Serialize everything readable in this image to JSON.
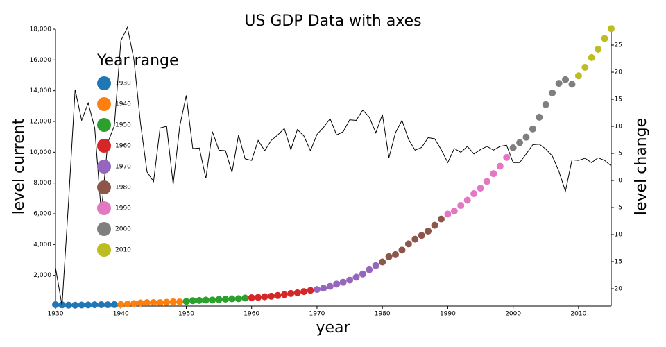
{
  "chart_data": {
    "type": "scatter",
    "title": "US GDP Data with axes",
    "x_label": "year",
    "y_label": "level current",
    "y2_label": "level change",
    "legend_title": "Year range",
    "xlim": [
      1930,
      2015
    ],
    "xticks": [
      1930,
      1940,
      1950,
      1960,
      1970,
      1980,
      1990,
      2000,
      2010
    ],
    "ylim": [
      0,
      18000
    ],
    "yticks": [
      {
        "value": 2000,
        "label": "2,000"
      },
      {
        "value": 4000,
        "label": "4,000"
      },
      {
        "value": 6000,
        "label": "6,000"
      },
      {
        "value": 8000,
        "label": "8,000"
      },
      {
        "value": 10000,
        "label": "10,000"
      },
      {
        "value": 12000,
        "label": "12,000"
      },
      {
        "value": 14000,
        "label": "14,000"
      },
      {
        "value": 16000,
        "label": "16,000"
      },
      {
        "value": 18000,
        "label": "18,000"
      }
    ],
    "y2lim": [
      -23.2,
      27.95
    ],
    "y2ticks": [
      -20,
      -15,
      -10,
      -5,
      0,
      5,
      10,
      15,
      20,
      25
    ],
    "series": [
      {
        "name": "1930",
        "color": "#1f77b4",
        "x": [
          1930,
          1931,
          1932,
          1933,
          1934,
          1935,
          1936,
          1937,
          1938,
          1939
        ],
        "values": [
          92.2,
          77.4,
          59.5,
          57.2,
          66.8,
          74.2,
          84.8,
          93.0,
          87.4,
          93.5
        ]
      },
      {
        "name": "1940",
        "color": "#ff7f0e",
        "x": [
          1940,
          1941,
          1942,
          1943,
          1944,
          1945,
          1946,
          1947,
          1948,
          1949
        ],
        "values": [
          102.9,
          129.4,
          166.0,
          203.1,
          224.6,
          228.2,
          227.8,
          249.9,
          274.8,
          272.8
        ]
      },
      {
        "name": "1950",
        "color": "#2ca02c",
        "x": [
          1950,
          1951,
          1952,
          1953,
          1954,
          1955,
          1956,
          1957,
          1958,
          1959
        ],
        "values": [
          300.2,
          347.3,
          367.7,
          389.7,
          391.1,
          426.2,
          450.1,
          474.9,
          482.0,
          522.5
        ]
      },
      {
        "name": "1960",
        "color": "#d62728",
        "x": [
          1960,
          1961,
          1962,
          1963,
          1964,
          1965,
          1966,
          1967,
          1968,
          1969
        ],
        "values": [
          543.3,
          563.3,
          605.1,
          638.6,
          685.8,
          743.7,
          815.0,
          861.7,
          942.5,
          1019.9
        ]
      },
      {
        "name": "1970",
        "color": "#9467bd",
        "x": [
          1970,
          1971,
          1972,
          1973,
          1974,
          1975,
          1976,
          1977,
          1978,
          1979
        ],
        "values": [
          1075.9,
          1167.8,
          1282.4,
          1428.5,
          1548.8,
          1688.9,
          1877.6,
          2086.0,
          2356.6,
          2632.1
        ]
      },
      {
        "name": "1980",
        "color": "#8c564b",
        "x": [
          1980,
          1981,
          1982,
          1983,
          1984,
          1985,
          1986,
          1987,
          1988,
          1989
        ],
        "values": [
          2862.5,
          3211.0,
          3345.0,
          3638.1,
          4040.7,
          4346.7,
          4590.2,
          4870.2,
          5252.6,
          5657.7
        ]
      },
      {
        "name": "1990",
        "color": "#e377c2",
        "x": [
          1990,
          1991,
          1992,
          1993,
          1994,
          1995,
          1996,
          1997,
          1998,
          1999
        ],
        "values": [
          5979.6,
          6174.0,
          6539.3,
          6878.7,
          7308.8,
          7664.1,
          8100.2,
          8608.5,
          9089.2,
          9660.6
        ]
      },
      {
        "name": "2000",
        "color": "#7f7f7f",
        "x": [
          2000,
          2001,
          2002,
          2003,
          2004,
          2005,
          2006,
          2007,
          2008,
          2009
        ],
        "values": [
          10284.8,
          10621.8,
          10977.5,
          11510.7,
          12274.9,
          13093.7,
          13855.9,
          14477.6,
          14718.6,
          14418.7
        ]
      },
      {
        "name": "2010",
        "color": "#bcbd22",
        "x": [
          2010,
          2011,
          2012,
          2013,
          2014,
          2015
        ],
        "values": [
          14964.4,
          15517.9,
          16155.3,
          16691.5,
          17393.1,
          18036.6
        ]
      },
      {
        "type": "line",
        "axis": "y2",
        "color": "#000000",
        "x": [
          1930,
          1931,
          1932,
          1933,
          1934,
          1935,
          1936,
          1937,
          1938,
          1939,
          1940,
          1941,
          1942,
          1943,
          1944,
          1945,
          1946,
          1947,
          1948,
          1949,
          1950,
          1951,
          1952,
          1953,
          1954,
          1955,
          1956,
          1957,
          1958,
          1959,
          1960,
          1961,
          1962,
          1963,
          1964,
          1965,
          1966,
          1967,
          1968,
          1969,
          1970,
          1971,
          1972,
          1973,
          1974,
          1975,
          1976,
          1977,
          1978,
          1979,
          1980,
          1981,
          1982,
          1983,
          1984,
          1985,
          1986,
          1987,
          1988,
          1989,
          1990,
          1991,
          1992,
          1993,
          1994,
          1995,
          1996,
          1997,
          1998,
          1999,
          2000,
          2001,
          2002,
          2003,
          2004,
          2005,
          2006,
          2007,
          2008,
          2009,
          2010,
          2011,
          2012,
          2013,
          2014,
          2015
        ],
        "values": [
          -16.1,
          -23.1,
          -3.9,
          16.8,
          11.1,
          14.3,
          9.7,
          -6.0,
          7.0,
          10.1,
          25.8,
          28.3,
          22.3,
          10.6,
          1.6,
          -0.2,
          9.7,
          10.0,
          -0.7,
          10.0,
          15.7,
          5.9,
          6.0,
          0.4,
          9.0,
          5.6,
          5.5,
          1.5,
          8.4,
          4.0,
          3.7,
          7.4,
          5.5,
          7.4,
          8.4,
          9.6,
          5.7,
          9.4,
          8.2,
          5.5,
          8.5,
          9.8,
          11.4,
          8.4,
          9.0,
          11.2,
          11.1,
          13.0,
          11.7,
          8.8,
          12.2,
          4.2,
          8.8,
          11.1,
          7.6,
          5.6,
          6.1,
          7.9,
          7.7,
          5.7,
          3.3,
          5.9,
          5.2,
          6.3,
          4.9,
          5.7,
          6.3,
          5.6,
          6.3,
          6.5,
          3.3,
          3.3,
          4.9,
          6.6,
          6.7,
          5.8,
          4.5,
          1.7,
          -2.0,
          3.8,
          3.7,
          4.1,
          3.3,
          4.2,
          3.7,
          2.7
        ]
      }
    ]
  }
}
